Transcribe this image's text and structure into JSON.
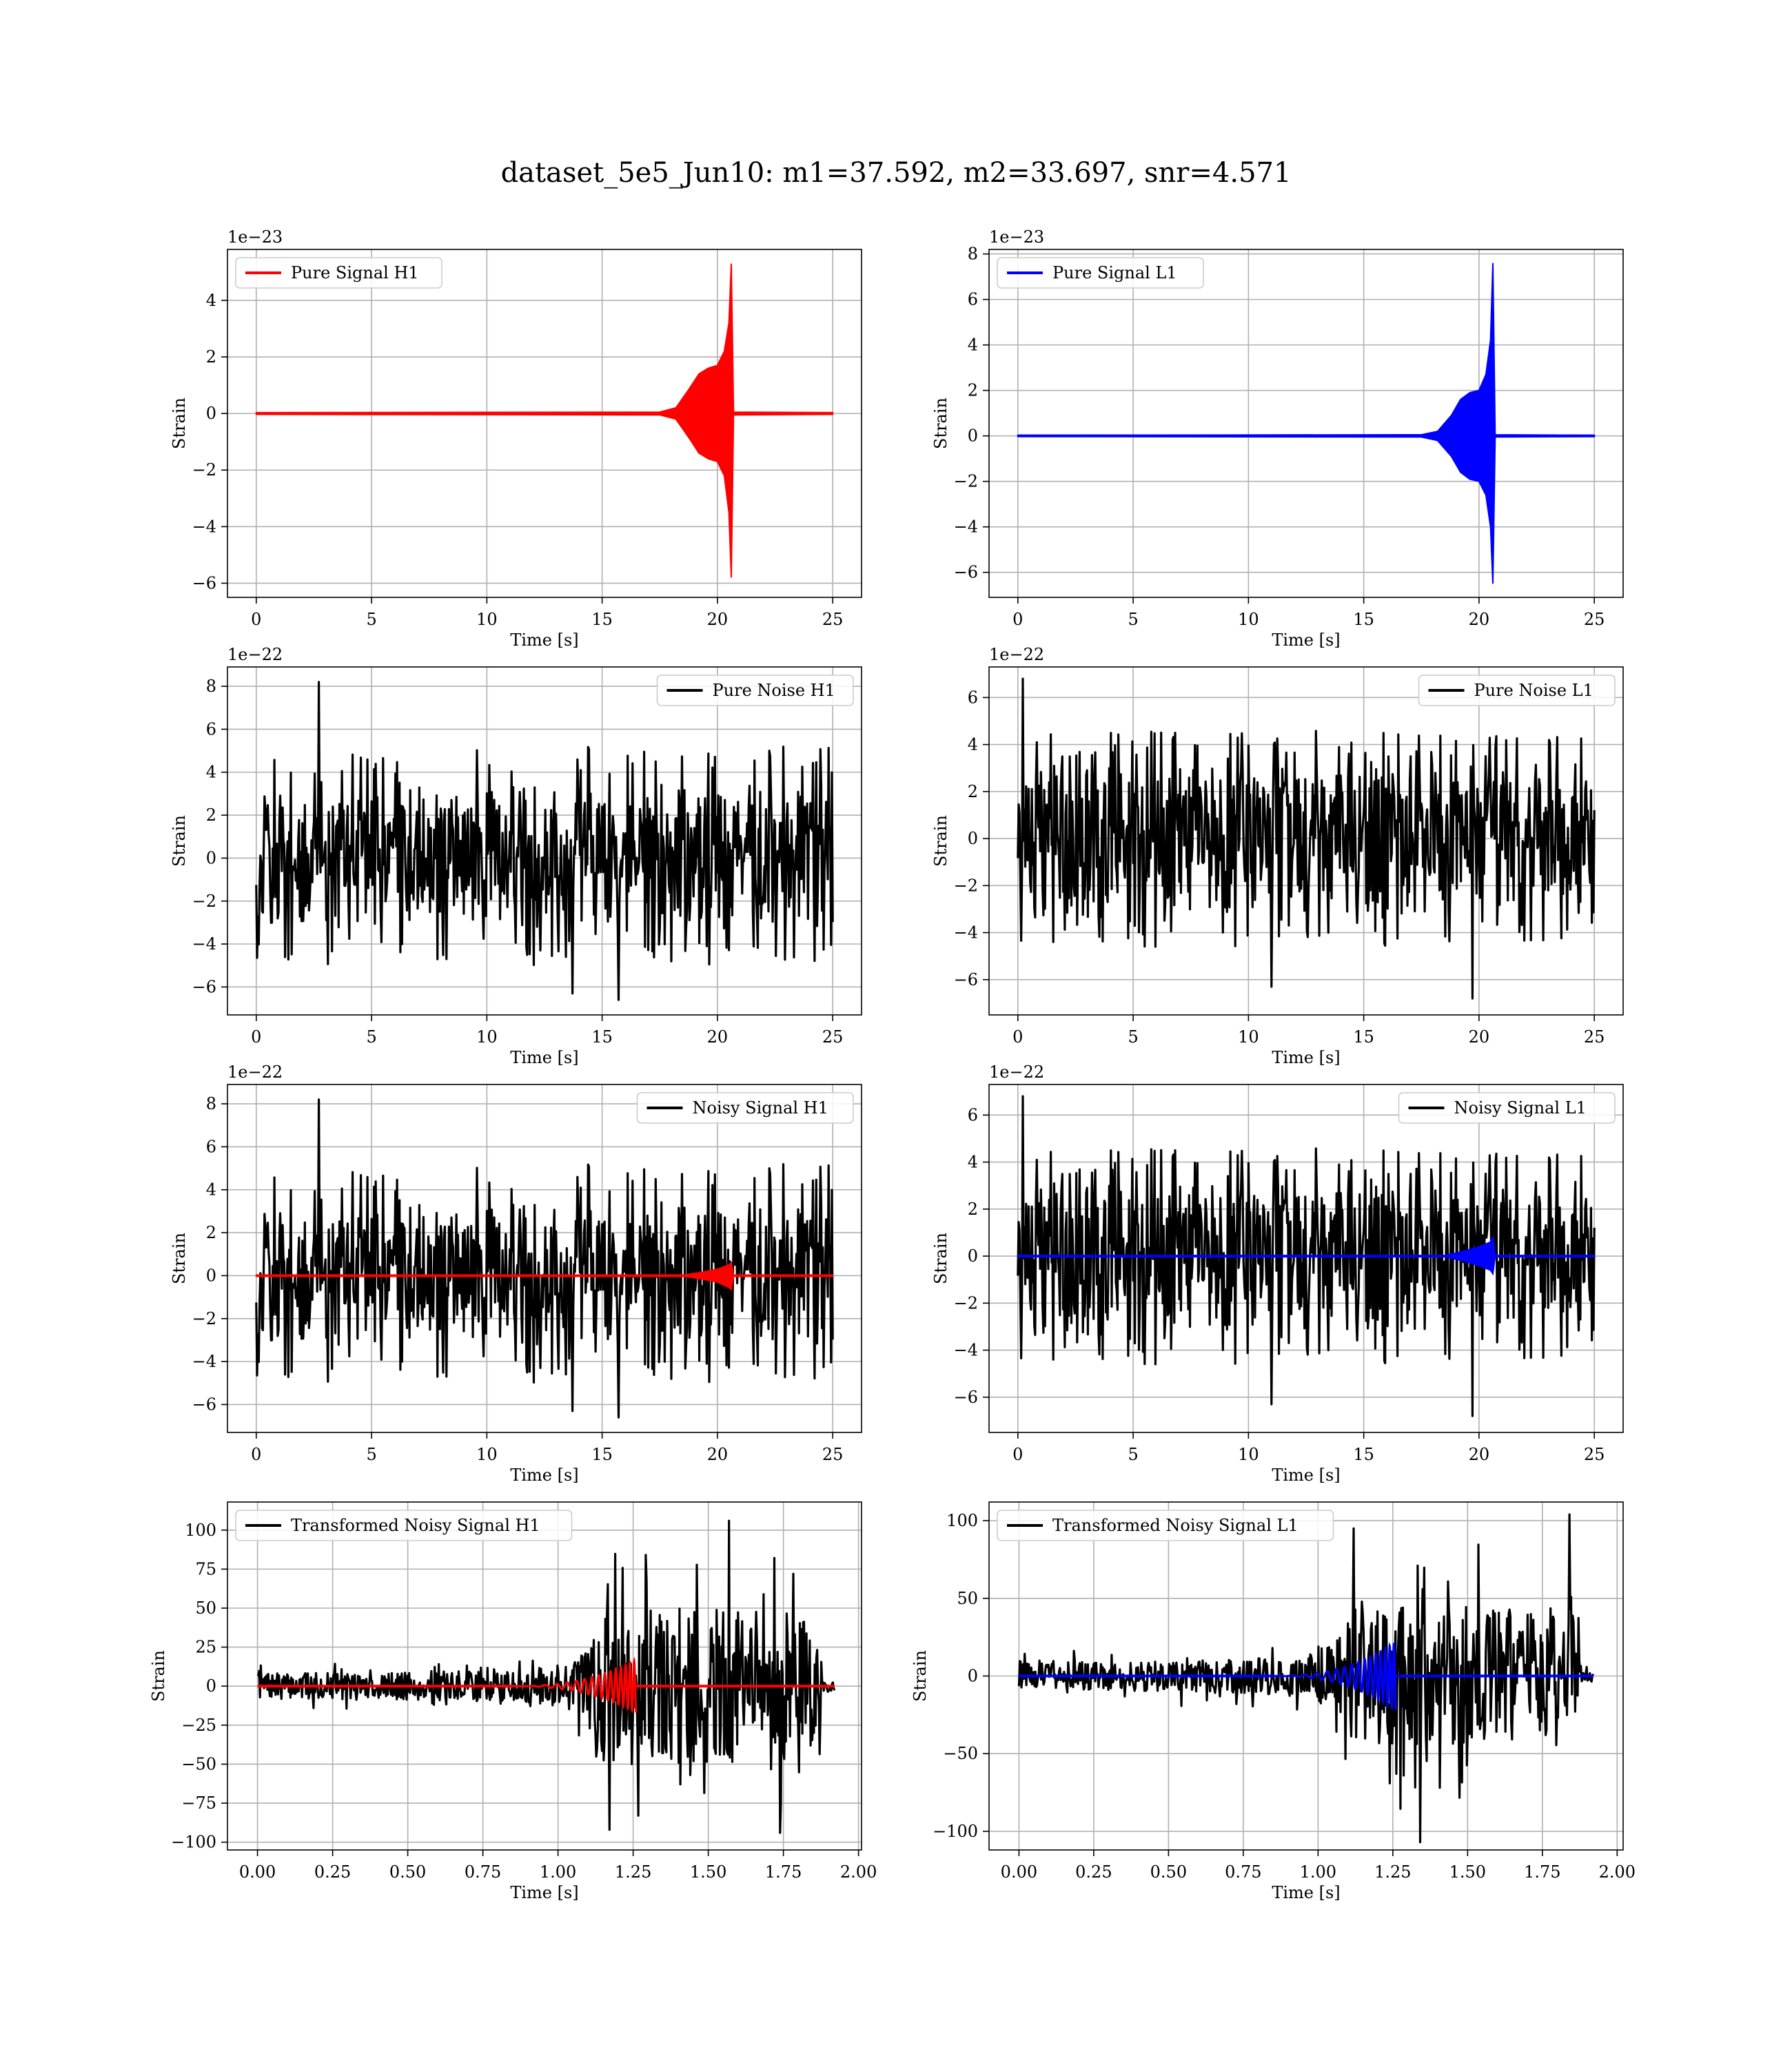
{
  "title": "dataset_5e5_Jun10: m1=37.592, m2=33.697, snr=4.571",
  "chart_data": [
    {
      "type": "line",
      "legend": [
        "Pure Signal H1"
      ],
      "legend_loc": "top-left",
      "color": "#ff0000",
      "xlabel": "Time [s]",
      "ylabel": "Strain",
      "offset_label": "1e−23",
      "xlim": [
        -1.25,
        26.25
      ],
      "ylim": [
        -6.5,
        5.8
      ],
      "xticks": [
        0,
        5,
        10,
        15,
        20,
        25
      ],
      "yticks": [
        -6,
        -4,
        -2,
        0,
        2,
        4
      ],
      "grid": true,
      "series": [
        {
          "kind": "envelope",
          "color": "#ff0000",
          "x": [
            0,
            17.5,
            18.2,
            18.8,
            19.2,
            19.6,
            20.0,
            20.3,
            20.5,
            20.6,
            20.7,
            25
          ],
          "upper": [
            0.03,
            0.05,
            0.2,
            0.9,
            1.4,
            1.6,
            1.7,
            2.2,
            3.2,
            5.3,
            0.05,
            0.03
          ],
          "lower": [
            -0.03,
            -0.05,
            -0.2,
            -0.9,
            -1.4,
            -1.6,
            -1.7,
            -2.2,
            -3.5,
            -5.8,
            -0.05,
            -0.03
          ]
        }
      ]
    },
    {
      "type": "line",
      "legend": [
        "Pure Signal L1"
      ],
      "legend_loc": "top-left",
      "color": "#0000ff",
      "xlabel": "Time [s]",
      "ylabel": "Strain",
      "offset_label": "1e−23",
      "xlim": [
        -1.25,
        26.25
      ],
      "ylim": [
        -7.1,
        8.2
      ],
      "xticks": [
        0,
        5,
        10,
        15,
        20,
        25
      ],
      "yticks": [
        -6,
        -4,
        -2,
        0,
        2,
        4,
        6,
        8
      ],
      "grid": true,
      "series": [
        {
          "kind": "envelope",
          "color": "#0000ff",
          "x": [
            0,
            17.5,
            18.2,
            18.8,
            19.2,
            19.6,
            20.0,
            20.3,
            20.5,
            20.6,
            20.7,
            25
          ],
          "upper": [
            0.03,
            0.05,
            0.2,
            0.9,
            1.6,
            1.9,
            2.0,
            2.7,
            4.2,
            7.6,
            0.05,
            0.03
          ],
          "lower": [
            -0.03,
            -0.05,
            -0.2,
            -0.9,
            -1.6,
            -1.9,
            -2.0,
            -2.6,
            -4.0,
            -6.5,
            -0.05,
            -0.03
          ]
        }
      ]
    },
    {
      "type": "line",
      "legend": [
        "Pure Noise H1"
      ],
      "legend_loc": "top-right",
      "color": "#000000",
      "xlabel": "Time [s]",
      "ylabel": "Strain",
      "offset_label": "1e−22",
      "xlim": [
        -1.25,
        26.25
      ],
      "ylim": [
        -7.3,
        8.9
      ],
      "xticks": [
        0,
        5,
        10,
        15,
        20,
        25
      ],
      "yticks": [
        -6,
        -4,
        -2,
        0,
        2,
        4,
        6,
        8
      ],
      "grid": true,
      "series": [
        {
          "kind": "noise",
          "color": "#000000",
          "x0": 0,
          "x1": 25,
          "n": 700,
          "core": 2.6,
          "spikes_hi": 5.2,
          "spikes_lo": -5.0,
          "seed": 11,
          "peaks": [
            [
              2.7,
              8.2
            ],
            [
              15.7,
              -6.6
            ],
            [
              13.7,
              -6.3
            ]
          ]
        }
      ]
    },
    {
      "type": "line",
      "legend": [
        "Pure Noise L1"
      ],
      "legend_loc": "top-right",
      "color": "#000000",
      "xlabel": "Time [s]",
      "ylabel": "Strain",
      "offset_label": "1e−22",
      "xlim": [
        -1.25,
        26.25
      ],
      "ylim": [
        -7.5,
        7.3
      ],
      "xticks": [
        0,
        5,
        10,
        15,
        20,
        25
      ],
      "yticks": [
        -6,
        -4,
        -2,
        0,
        2,
        4,
        6
      ],
      "grid": true,
      "series": [
        {
          "kind": "noise",
          "color": "#000000",
          "x0": 0,
          "x1": 25,
          "n": 700,
          "core": 2.6,
          "spikes_hi": 4.6,
          "spikes_lo": -4.6,
          "seed": 23,
          "peaks": [
            [
              0.2,
              6.8
            ],
            [
              19.7,
              -6.8
            ],
            [
              11.0,
              -6.3
            ]
          ]
        }
      ]
    },
    {
      "type": "line",
      "legend": [
        "Noisy Signal H1"
      ],
      "legend_loc": "top-right",
      "color": "#000000",
      "xlabel": "Time [s]",
      "ylabel": "Strain",
      "offset_label": "1e−22",
      "xlim": [
        -1.25,
        26.25
      ],
      "ylim": [
        -7.3,
        8.9
      ],
      "xticks": [
        0,
        5,
        10,
        15,
        20,
        25
      ],
      "yticks": [
        -6,
        -4,
        -2,
        0,
        2,
        4,
        6,
        8
      ],
      "grid": true,
      "series": [
        {
          "kind": "noise",
          "color": "#000000",
          "x0": 0,
          "x1": 25,
          "n": 700,
          "core": 2.6,
          "spikes_hi": 5.2,
          "spikes_lo": -5.0,
          "seed": 11,
          "peaks": [
            [
              2.7,
              8.2
            ],
            [
              15.7,
              -6.6
            ],
            [
              13.7,
              -6.3
            ]
          ]
        },
        {
          "kind": "envelope",
          "color": "#ff0000",
          "x": [
            0,
            18.5,
            19.3,
            20.0,
            20.5,
            20.6,
            20.7,
            25
          ],
          "upper": [
            0.02,
            0.02,
            0.15,
            0.3,
            0.5,
            0.6,
            0.02,
            0.02
          ],
          "lower": [
            -0.02,
            -0.02,
            -0.15,
            -0.3,
            -0.55,
            -0.65,
            -0.02,
            -0.02
          ]
        }
      ]
    },
    {
      "type": "line",
      "legend": [
        "Noisy Signal L1"
      ],
      "legend_loc": "top-right",
      "color": "#000000",
      "xlabel": "Time [s]",
      "ylabel": "Strain",
      "offset_label": "1e−22",
      "xlim": [
        -1.25,
        26.25
      ],
      "ylim": [
        -7.5,
        7.3
      ],
      "xticks": [
        0,
        5,
        10,
        15,
        20,
        25
      ],
      "yticks": [
        -6,
        -4,
        -2,
        0,
        2,
        4,
        6
      ],
      "grid": true,
      "series": [
        {
          "kind": "noise",
          "color": "#000000",
          "x0": 0,
          "x1": 25,
          "n": 700,
          "core": 2.6,
          "spikes_hi": 4.6,
          "spikes_lo": -4.6,
          "seed": 23,
          "peaks": [
            [
              0.2,
              6.8
            ],
            [
              19.7,
              -6.8
            ],
            [
              11.0,
              -6.3
            ]
          ]
        },
        {
          "kind": "envelope",
          "color": "#0000ff",
          "x": [
            0,
            18.5,
            19.3,
            20.0,
            20.5,
            20.6,
            20.7,
            25
          ],
          "upper": [
            0.02,
            0.02,
            0.2,
            0.4,
            0.6,
            0.8,
            0.02,
            0.02
          ],
          "lower": [
            -0.02,
            -0.02,
            -0.2,
            -0.4,
            -0.6,
            -0.75,
            -0.02,
            -0.02
          ]
        }
      ]
    },
    {
      "type": "line",
      "legend": [
        "Transformed Noisy Signal H1"
      ],
      "legend_loc": "top-left",
      "color": "#000000",
      "xlabel": "Time [s]",
      "ylabel": "Strain",
      "offset_label": "",
      "xlim": [
        -0.1,
        2.01
      ],
      "ylim": [
        -105,
        118
      ],
      "xticks": [
        0.0,
        0.25,
        0.5,
        0.75,
        1.0,
        1.25,
        1.5,
        1.75,
        2.0
      ],
      "xticklabels": [
        "0.00",
        "0.25",
        "0.50",
        "0.75",
        "1.00",
        "1.25",
        "1.50",
        "1.75",
        "2.00"
      ],
      "yticks": [
        -100,
        -75,
        -50,
        -25,
        0,
        25,
        50,
        75,
        100
      ],
      "grid": true,
      "series": [
        {
          "kind": "noise",
          "color": "#000000",
          "x0": 0,
          "x1": 1.92,
          "n": 700,
          "profile": [
            [
              0,
              8
            ],
            [
              0.9,
              10
            ],
            [
              1.05,
              16
            ],
            [
              1.12,
              30
            ],
            [
              1.14,
              50
            ],
            [
              1.87,
              50
            ],
            [
              1.88,
              4
            ],
            [
              1.92,
              4
            ]
          ],
          "spike_scale": 1.7,
          "seed": 7,
          "peaks": [
            [
              1.57,
              106
            ],
            [
              1.74,
              -94
            ],
            [
              1.17,
              -92
            ]
          ]
        },
        {
          "kind": "chirp",
          "color": "#ff0000",
          "t0": 0.85,
          "t1": 1.26,
          "amp_max": 17,
          "f0": 20,
          "f1": 75,
          "tail_end": 1.92
        }
      ]
    },
    {
      "type": "line",
      "legend": [
        "Transformed Noisy Signal L1"
      ],
      "legend_loc": "top-left",
      "color": "#000000",
      "xlabel": "Time [s]",
      "ylabel": "Strain",
      "offset_label": "",
      "xlim": [
        -0.1,
        2.02
      ],
      "ylim": [
        -112,
        112
      ],
      "xticks": [
        0.0,
        0.25,
        0.5,
        0.75,
        1.0,
        1.25,
        1.5,
        1.75,
        2.0
      ],
      "xticklabels": [
        "0.00",
        "0.25",
        "0.50",
        "0.75",
        "1.00",
        "1.25",
        "1.50",
        "1.75",
        "2.00"
      ],
      "yticks": [
        -100,
        -50,
        0,
        50,
        100
      ],
      "grid": true,
      "series": [
        {
          "kind": "noise",
          "color": "#000000",
          "x0": 0,
          "x1": 1.92,
          "n": 700,
          "profile": [
            [
              0,
              8
            ],
            [
              0.95,
              12
            ],
            [
              1.08,
              25
            ],
            [
              1.11,
              45
            ],
            [
              1.87,
              45
            ],
            [
              1.88,
              4
            ],
            [
              1.92,
              4
            ]
          ],
          "spike_scale": 1.9,
          "seed": 31,
          "peaks": [
            [
              1.84,
              104
            ],
            [
              1.34,
              -107
            ],
            [
              1.12,
              95
            ]
          ]
        },
        {
          "kind": "chirp",
          "color": "#0000ff",
          "t0": 0.85,
          "t1": 1.26,
          "amp_max": 22,
          "f0": 20,
          "f1": 75,
          "tail_end": 1.92
        }
      ]
    }
  ]
}
